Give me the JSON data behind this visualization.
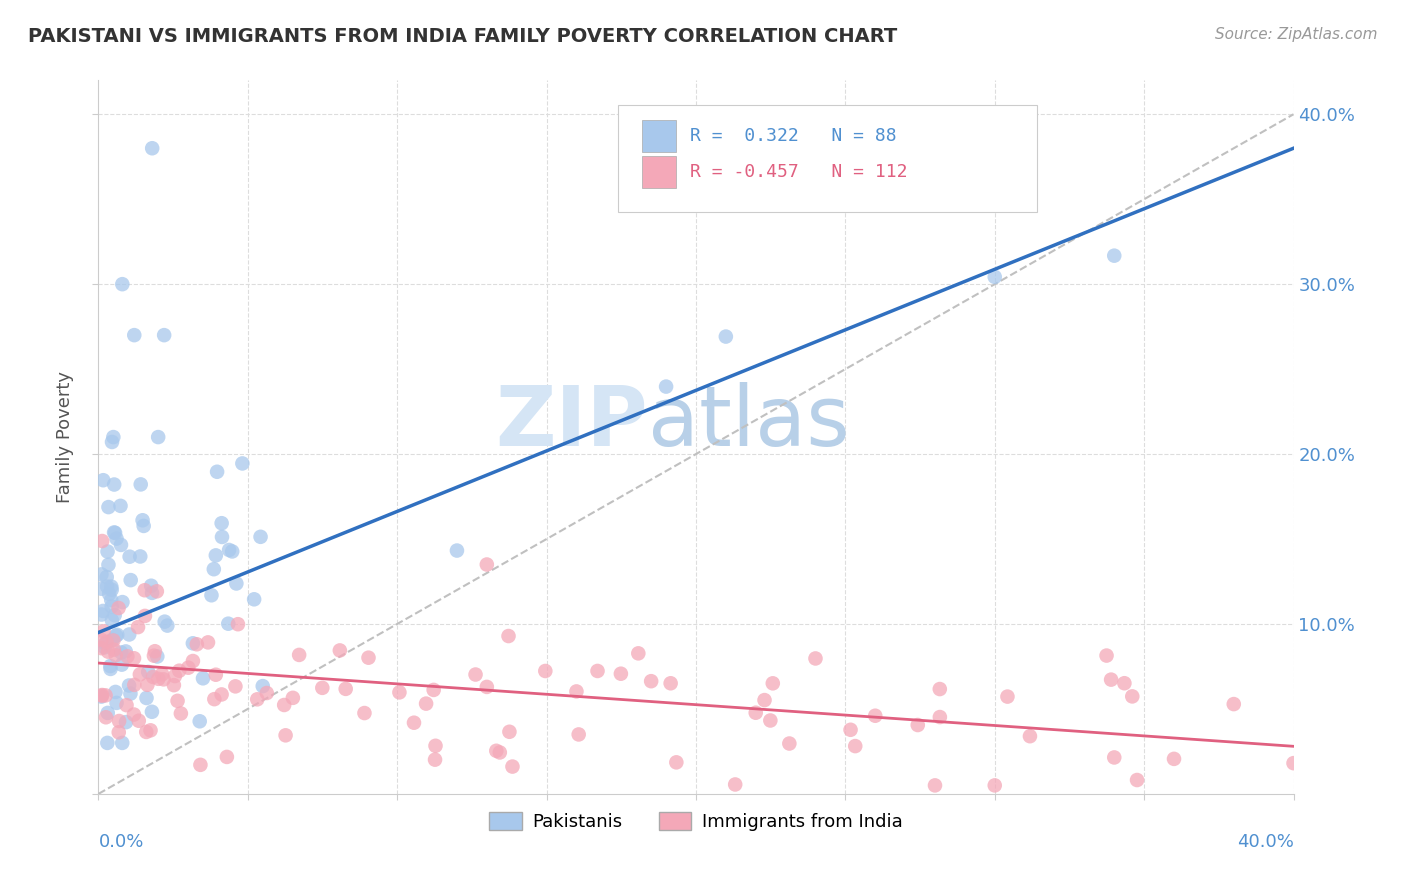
{
  "title": "PAKISTANI VS IMMIGRANTS FROM INDIA FAMILY POVERTY CORRELATION CHART",
  "source": "Source: ZipAtlas.com",
  "ylabel": "Family Poverty",
  "xlim": [
    0,
    0.4
  ],
  "ylim": [
    0,
    0.42
  ],
  "blue_color": "#A8C8EC",
  "pink_color": "#F4A8B8",
  "blue_line_color": "#3070C0",
  "pink_line_color": "#E06080",
  "gray_dash_color": "#C0C0C0",
  "right_tick_color": "#5090D0",
  "bottom_tick_color": "#5090D0",
  "pak_line_x0": 0.0,
  "pak_line_y0": 0.095,
  "pak_line_x1": 0.4,
  "pak_line_y1": 0.38,
  "india_line_x0": 0.0,
  "india_line_y0": 0.077,
  "india_line_x1": 0.4,
  "india_line_y1": 0.028
}
